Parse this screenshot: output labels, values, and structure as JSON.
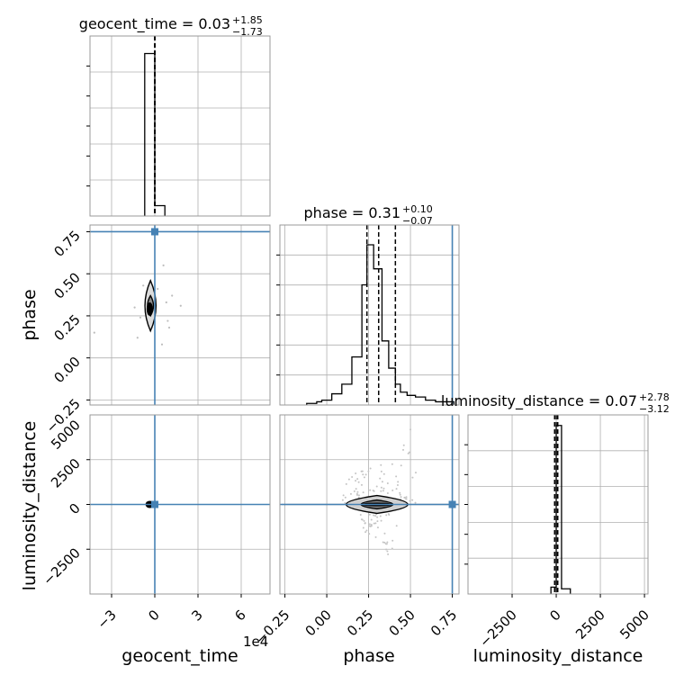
{
  "chart_data": {
    "type": "corner",
    "parameters": [
      "geocent_time",
      "phase",
      "luminosity_distance"
    ],
    "truth_color": "#4682b4",
    "panels": {
      "geocent_time_hist": {
        "title": {
          "main": "geocent_time = 0.03",
          "sup": "+1.85",
          "sub": "−1.73"
        },
        "xlim": [
          -45000,
          80000
        ],
        "bins": [
          {
            "x0": -7000,
            "x1": 0,
            "density": 0.94
          },
          {
            "x0": 0,
            "x1": 7000,
            "density": 0.06
          }
        ],
        "quantile_lines": [
          -1.7,
          0.03,
          1.88
        ],
        "truth": null
      },
      "phase_hist": {
        "title": {
          "main": "phase = 0.31",
          "sup": "+0.10",
          "sub": "−0.07"
        },
        "xlim": [
          -0.28,
          0.79
        ],
        "bin_edges": [
          -0.12,
          -0.06,
          -0.03,
          0.03,
          0.09,
          0.15,
          0.21,
          0.24,
          0.28,
          0.33,
          0.37,
          0.41,
          0.44,
          0.48,
          0.53,
          0.59,
          0.65,
          0.71,
          0.76
        ],
        "bin_heights": [
          0.01,
          0.02,
          0.03,
          0.07,
          0.13,
          0.3,
          0.75,
          1.0,
          0.85,
          0.4,
          0.23,
          0.13,
          0.08,
          0.06,
          0.05,
          0.03,
          0.02,
          0.02
        ],
        "quantile_lines": [
          0.24,
          0.31,
          0.41
        ],
        "truth": 0.75
      },
      "luminosity_distance_hist": {
        "title": {
          "main": "luminosity_distance = 0.07",
          "sup": "+2.78",
          "sub": "−3.12"
        },
        "xlim": [
          -5000,
          5200
        ],
        "bins": [
          {
            "x0": -300,
            "x1": 0,
            "density": 0.04
          },
          {
            "x0": 0,
            "x1": 300,
            "density": 0.98
          },
          {
            "x0": 300,
            "x1": 800,
            "density": 0.03
          }
        ],
        "quantile_lines": [
          -3.05,
          0.07,
          2.85
        ],
        "truth": null
      },
      "phase_vs_geocent_time": {
        "xlim": [
          -45000,
          80000
        ],
        "ylim": [
          -0.28,
          0.79
        ],
        "truth": [
          0,
          0.75
        ],
        "density_center": [
          0,
          0.31
        ],
        "contour_outer": {
          "cx": -3000,
          "cy": 0.31,
          "rx": 4800,
          "ry": 0.15
        },
        "contour_inner": {
          "cx": -3000,
          "cy": 0.31,
          "rx": 2600,
          "ry": 0.06
        },
        "core": {
          "cx": -3500,
          "cy": 0.29,
          "rx": 2200,
          "ry": 0.04
        },
        "scatter": [
          [
            -42000,
            0.15
          ],
          [
            -14000,
            0.3
          ],
          [
            -10000,
            0.24
          ],
          [
            8000,
            0.33
          ],
          [
            6000,
            0.55
          ],
          [
            18000,
            0.31
          ],
          [
            12000,
            0.37
          ],
          [
            -12000,
            0.12
          ],
          [
            5000,
            0.08
          ],
          [
            -8000,
            0.43
          ],
          [
            9000,
            0.22
          ],
          [
            2000,
            0.41
          ],
          [
            -2000,
            0.18
          ],
          [
            -6000,
            0.26
          ],
          [
            10000,
            0.18
          ]
        ]
      },
      "luminosity_distance_vs_geocent_time": {
        "xlim": [
          -45000,
          80000
        ],
        "ylim": [
          -5000,
          5000
        ],
        "truth": [
          0,
          0
        ],
        "core": {
          "cx": -3500,
          "cy": 0,
          "rx": 3000,
          "ry": 200
        }
      },
      "luminosity_distance_vs_phase": {
        "xlim": [
          -0.28,
          0.79
        ],
        "ylim": [
          -5000,
          5000
        ],
        "truth": [
          0.75,
          0
        ],
        "contour_outer": {
          "cx": 0.3,
          "cy": 0,
          "rx": 0.23,
          "ry": 500
        },
        "contour_inner": {
          "cx": 0.3,
          "cy": 0,
          "rx": 0.12,
          "ry": 250
        },
        "core": {
          "cx": 0.3,
          "cy": 0,
          "rx": 0.1,
          "ry": 100
        },
        "density_line_xrange": [
          -0.27,
          0.79
        ]
      }
    },
    "ticks": {
      "geocent_time_x": [
        {
          "v": -30000,
          "t": "−3"
        },
        {
          "v": 0,
          "t": "0"
        },
        {
          "v": 30000,
          "t": "3"
        },
        {
          "v": 60000,
          "t": "6"
        }
      ],
      "geocent_time_offset": "1e4",
      "phase": [
        {
          "v": -0.25,
          "t": "−0.25"
        },
        {
          "v": 0.0,
          "t": "0.00"
        },
        {
          "v": 0.25,
          "t": "0.25"
        },
        {
          "v": 0.5,
          "t": "0.50"
        },
        {
          "v": 0.75,
          "t": "0.75"
        }
      ],
      "luminosity_distance": [
        {
          "v": -2500,
          "t": "−2500"
        },
        {
          "v": 0,
          "t": "0"
        },
        {
          "v": 2500,
          "t": "2500"
        },
        {
          "v": 5000,
          "t": "5000"
        }
      ]
    },
    "axis_labels": {
      "geocent_time": "geocent_time",
      "phase": "phase",
      "luminosity_distance": "luminosity_distance"
    },
    "grid": true
  }
}
